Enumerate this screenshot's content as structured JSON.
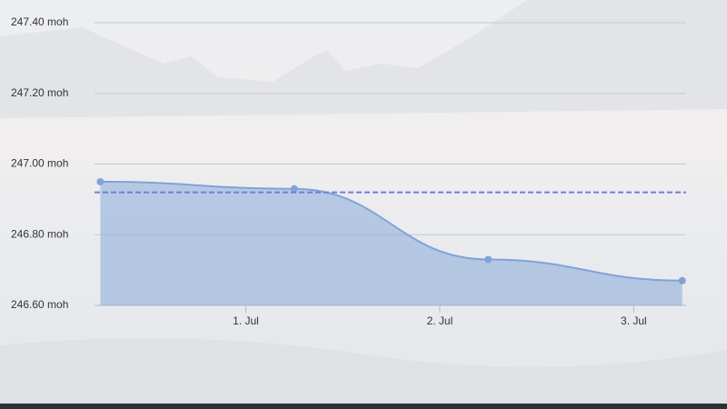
{
  "chart_data": {
    "type": "area",
    "x": [
      0.25,
      1.25,
      2.25,
      3.25
    ],
    "series": [
      {
        "color": "#7fa3d8",
        "values": [
          246.95,
          246.93,
          246.73,
          246.67
        ]
      }
    ],
    "xlim": [
      0.22,
      3.27
    ],
    "xticks": [
      {
        "value": 1,
        "label": "1. Jul"
      },
      {
        "value": 2,
        "label": "2. Jul"
      },
      {
        "value": 3,
        "label": "3. Jul"
      }
    ],
    "ylim": [
      246.6,
      247.4
    ],
    "yticks": [
      {
        "value": 246.6,
        "label": "246.60 moh"
      },
      {
        "value": 246.8,
        "label": "246.80 moh"
      },
      {
        "value": 247.0,
        "label": "247.00 moh"
      },
      {
        "value": 247.2,
        "label": "247.20 moh"
      },
      {
        "value": 247.4,
        "label": "247.40 moh"
      }
    ],
    "plot_lines": [
      {
        "value": 246.92,
        "color": "#6c80d8"
      }
    ],
    "grid": true
  }
}
